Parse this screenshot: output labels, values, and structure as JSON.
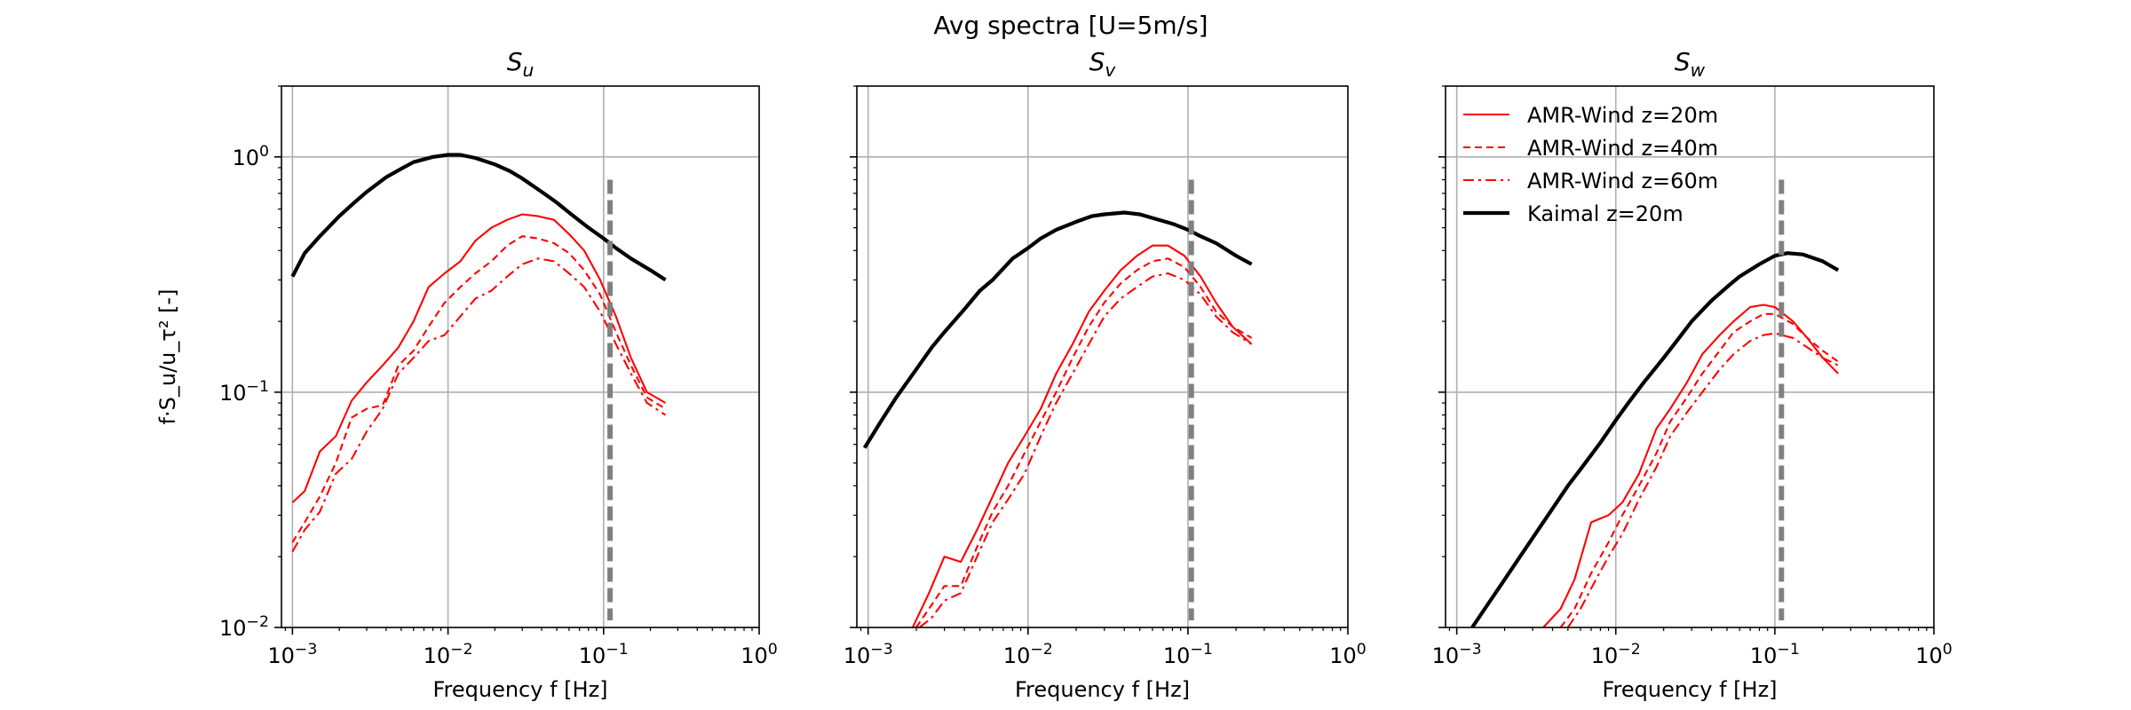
{
  "figure": {
    "suptitle": "Avg spectra [U=5m/s]"
  },
  "chart_data": [
    {
      "type": "line",
      "title": "S_u",
      "xlabel": "Frequency f [Hz]",
      "ylabel": "f·S_u/u_τ² [-]",
      "xscale": "log",
      "yscale": "log",
      "xlim": [
        0.00085,
        1.0
      ],
      "ylim": [
        0.01,
        2.0
      ],
      "xticks": [
        "10^-3",
        "10^-2",
        "10^-1",
        "10^0"
      ],
      "yticks": [
        "10^-2",
        "10^-1",
        "10^0"
      ],
      "grid": true,
      "vline": {
        "x": 0.11,
        "ymax": 0.8,
        "color": "#808080",
        "style": "dashed"
      },
      "series": [
        {
          "name": "AMR-Wind z=20m",
          "color": "#ff0000",
          "style": "solid",
          "width": 1.5,
          "x": [
            0.001,
            0.0012,
            0.0015,
            0.0019,
            0.0024,
            0.003,
            0.0038,
            0.0048,
            0.006,
            0.0075,
            0.0095,
            0.012,
            0.015,
            0.019,
            0.024,
            0.03,
            0.038,
            0.048,
            0.06,
            0.075,
            0.095,
            0.12,
            0.15,
            0.19,
            0.25
          ],
          "y": [
            0.034,
            0.038,
            0.056,
            0.065,
            0.092,
            0.11,
            0.13,
            0.155,
            0.2,
            0.28,
            0.32,
            0.36,
            0.44,
            0.5,
            0.54,
            0.57,
            0.56,
            0.54,
            0.47,
            0.4,
            0.3,
            0.21,
            0.14,
            0.1,
            0.09
          ]
        },
        {
          "name": "AMR-Wind z=40m",
          "color": "#ff0000",
          "style": "dashed",
          "width": 1.5,
          "x": [
            0.001,
            0.0012,
            0.0015,
            0.0019,
            0.0024,
            0.003,
            0.0038,
            0.0048,
            0.006,
            0.0075,
            0.0095,
            0.012,
            0.015,
            0.019,
            0.024,
            0.03,
            0.038,
            0.048,
            0.06,
            0.075,
            0.095,
            0.12,
            0.15,
            0.19,
            0.25
          ],
          "y": [
            0.023,
            0.028,
            0.036,
            0.05,
            0.078,
            0.085,
            0.088,
            0.13,
            0.15,
            0.19,
            0.24,
            0.28,
            0.32,
            0.36,
            0.42,
            0.46,
            0.45,
            0.43,
            0.39,
            0.33,
            0.26,
            0.18,
            0.13,
            0.095,
            0.085
          ]
        },
        {
          "name": "AMR-Wind z=60m",
          "color": "#ff0000",
          "style": "dashdot",
          "width": 1.5,
          "x": [
            0.001,
            0.0012,
            0.0015,
            0.0019,
            0.0024,
            0.003,
            0.0038,
            0.0048,
            0.006,
            0.0075,
            0.0095,
            0.012,
            0.015,
            0.019,
            0.024,
            0.03,
            0.038,
            0.048,
            0.06,
            0.075,
            0.095,
            0.12,
            0.15,
            0.19,
            0.25
          ],
          "y": [
            0.021,
            0.026,
            0.031,
            0.045,
            0.052,
            0.068,
            0.085,
            0.12,
            0.14,
            0.165,
            0.175,
            0.21,
            0.25,
            0.27,
            0.31,
            0.35,
            0.37,
            0.36,
            0.32,
            0.28,
            0.22,
            0.16,
            0.12,
            0.09,
            0.08
          ]
        },
        {
          "name": "Kaimal z=20m",
          "color": "#000000",
          "style": "solid",
          "width": 3,
          "x": [
            0.001,
            0.0012,
            0.0015,
            0.002,
            0.0025,
            0.003,
            0.004,
            0.005,
            0.006,
            0.008,
            0.01,
            0.012,
            0.015,
            0.02,
            0.025,
            0.03,
            0.04,
            0.05,
            0.06,
            0.08,
            0.1,
            0.12,
            0.15,
            0.2,
            0.25
          ],
          "y": [
            0.31,
            0.39,
            0.46,
            0.56,
            0.64,
            0.71,
            0.82,
            0.89,
            0.95,
            1.0,
            1.02,
            1.02,
            0.99,
            0.93,
            0.87,
            0.81,
            0.71,
            0.64,
            0.58,
            0.5,
            0.45,
            0.41,
            0.37,
            0.33,
            0.3
          ]
        }
      ]
    },
    {
      "type": "line",
      "title": "S_v",
      "xlabel": "Frequency f [Hz]",
      "ylabel": "",
      "xscale": "log",
      "yscale": "log",
      "xlim": [
        0.00085,
        1.0
      ],
      "ylim": [
        0.01,
        2.0
      ],
      "xticks": [
        "10^-3",
        "10^-2",
        "10^-1",
        "10^0"
      ],
      "yticks": [],
      "grid": true,
      "vline": {
        "x": 0.105,
        "ymax": 0.8,
        "color": "#808080",
        "style": "dashed"
      },
      "series": [
        {
          "name": "AMR-Wind z=20m",
          "color": "#ff0000",
          "style": "solid",
          "width": 1.5,
          "x": [
            0.0019,
            0.0024,
            0.003,
            0.0038,
            0.0048,
            0.006,
            0.0075,
            0.0095,
            0.012,
            0.015,
            0.019,
            0.024,
            0.03,
            0.038,
            0.048,
            0.06,
            0.075,
            0.095,
            0.12,
            0.15,
            0.19,
            0.25
          ],
          "y": [
            0.01,
            0.014,
            0.02,
            0.019,
            0.026,
            0.036,
            0.05,
            0.065,
            0.085,
            0.12,
            0.16,
            0.22,
            0.27,
            0.33,
            0.38,
            0.42,
            0.42,
            0.38,
            0.31,
            0.24,
            0.19,
            0.16
          ]
        },
        {
          "name": "AMR-Wind z=40m",
          "color": "#ff0000",
          "style": "dashed",
          "width": 1.5,
          "x": [
            0.002,
            0.0024,
            0.003,
            0.0038,
            0.0048,
            0.006,
            0.0075,
            0.0095,
            0.012,
            0.015,
            0.019,
            0.024,
            0.03,
            0.038,
            0.048,
            0.06,
            0.075,
            0.095,
            0.12,
            0.15,
            0.19,
            0.25
          ],
          "y": [
            0.01,
            0.012,
            0.015,
            0.015,
            0.022,
            0.031,
            0.04,
            0.055,
            0.075,
            0.1,
            0.14,
            0.19,
            0.24,
            0.29,
            0.33,
            0.36,
            0.37,
            0.34,
            0.28,
            0.22,
            0.19,
            0.17
          ]
        },
        {
          "name": "AMR-Wind z=60m",
          "color": "#ff0000",
          "style": "dashdot",
          "width": 1.5,
          "x": [
            0.0021,
            0.0025,
            0.003,
            0.0038,
            0.0048,
            0.006,
            0.0075,
            0.0095,
            0.012,
            0.015,
            0.019,
            0.024,
            0.03,
            0.038,
            0.048,
            0.06,
            0.075,
            0.095,
            0.12,
            0.15,
            0.19,
            0.25
          ],
          "y": [
            0.01,
            0.011,
            0.013,
            0.014,
            0.02,
            0.028,
            0.035,
            0.045,
            0.065,
            0.09,
            0.12,
            0.16,
            0.21,
            0.25,
            0.28,
            0.31,
            0.32,
            0.3,
            0.26,
            0.21,
            0.18,
            0.16
          ]
        },
        {
          "name": "Kaimal z=20m",
          "color": "#000000",
          "style": "solid",
          "width": 3,
          "x": [
            0.00095,
            0.0012,
            0.0015,
            0.002,
            0.0025,
            0.003,
            0.004,
            0.005,
            0.006,
            0.008,
            0.01,
            0.012,
            0.015,
            0.02,
            0.025,
            0.03,
            0.04,
            0.05,
            0.06,
            0.08,
            0.1,
            0.12,
            0.15,
            0.2,
            0.25
          ],
          "y": [
            0.058,
            0.075,
            0.095,
            0.125,
            0.155,
            0.18,
            0.225,
            0.27,
            0.3,
            0.37,
            0.41,
            0.45,
            0.49,
            0.53,
            0.56,
            0.57,
            0.58,
            0.57,
            0.55,
            0.52,
            0.49,
            0.46,
            0.43,
            0.38,
            0.35
          ]
        }
      ]
    },
    {
      "type": "line",
      "title": "S_w",
      "xlabel": "Frequency f [Hz]",
      "ylabel": "",
      "xscale": "log",
      "yscale": "log",
      "xlim": [
        0.00085,
        1.0
      ],
      "ylim": [
        0.01,
        2.0
      ],
      "xticks": [
        "10^-3",
        "10^-2",
        "10^-1",
        "10^0"
      ],
      "yticks": [],
      "grid": true,
      "legend": "upper-left",
      "vline": {
        "x": 0.11,
        "ymax": 0.8,
        "color": "#808080",
        "style": "dashed"
      },
      "series": [
        {
          "name": "AMR-Wind z=20m",
          "color": "#ff0000",
          "style": "solid",
          "width": 1.5,
          "x": [
            0.0035,
            0.0045,
            0.0055,
            0.007,
            0.009,
            0.011,
            0.014,
            0.018,
            0.022,
            0.028,
            0.035,
            0.045,
            0.055,
            0.07,
            0.085,
            0.1,
            0.13,
            0.16,
            0.2,
            0.25
          ],
          "y": [
            0.01,
            0.012,
            0.016,
            0.028,
            0.03,
            0.034,
            0.045,
            0.07,
            0.085,
            0.11,
            0.145,
            0.175,
            0.2,
            0.23,
            0.235,
            0.23,
            0.2,
            0.17,
            0.14,
            0.12
          ]
        },
        {
          "name": "AMR-Wind z=40m",
          "color": "#ff0000",
          "style": "dashed",
          "width": 1.5,
          "x": [
            0.0045,
            0.0055,
            0.007,
            0.009,
            0.011,
            0.014,
            0.018,
            0.022,
            0.028,
            0.035,
            0.045,
            0.055,
            0.07,
            0.085,
            0.1,
            0.13,
            0.16,
            0.2,
            0.25
          ],
          "y": [
            0.01,
            0.012,
            0.017,
            0.023,
            0.03,
            0.04,
            0.055,
            0.075,
            0.095,
            0.12,
            0.15,
            0.18,
            0.2,
            0.215,
            0.215,
            0.195,
            0.17,
            0.15,
            0.135
          ]
        },
        {
          "name": "AMR-Wind z=60m",
          "color": "#ff0000",
          "style": "dashdot",
          "width": 1.5,
          "x": [
            0.005,
            0.006,
            0.0075,
            0.009,
            0.011,
            0.014,
            0.018,
            0.022,
            0.028,
            0.035,
            0.045,
            0.055,
            0.07,
            0.085,
            0.1,
            0.13,
            0.16,
            0.2,
            0.25
          ],
          "y": [
            0.01,
            0.012,
            0.016,
            0.02,
            0.025,
            0.035,
            0.048,
            0.065,
            0.082,
            0.1,
            0.125,
            0.145,
            0.165,
            0.175,
            0.178,
            0.17,
            0.155,
            0.14,
            0.13
          ]
        },
        {
          "name": "Kaimal z=20m",
          "color": "#000000",
          "style": "solid",
          "width": 3,
          "x": [
            0.00125,
            0.0015,
            0.002,
            0.0025,
            0.003,
            0.004,
            0.005,
            0.006,
            0.008,
            0.01,
            0.012,
            0.015,
            0.02,
            0.025,
            0.03,
            0.04,
            0.05,
            0.06,
            0.08,
            0.1,
            0.12,
            0.15,
            0.2,
            0.25
          ],
          "y": [
            0.01,
            0.012,
            0.016,
            0.02,
            0.024,
            0.032,
            0.04,
            0.047,
            0.061,
            0.076,
            0.09,
            0.11,
            0.14,
            0.17,
            0.2,
            0.245,
            0.28,
            0.31,
            0.35,
            0.38,
            0.39,
            0.385,
            0.36,
            0.33
          ]
        }
      ]
    }
  ]
}
